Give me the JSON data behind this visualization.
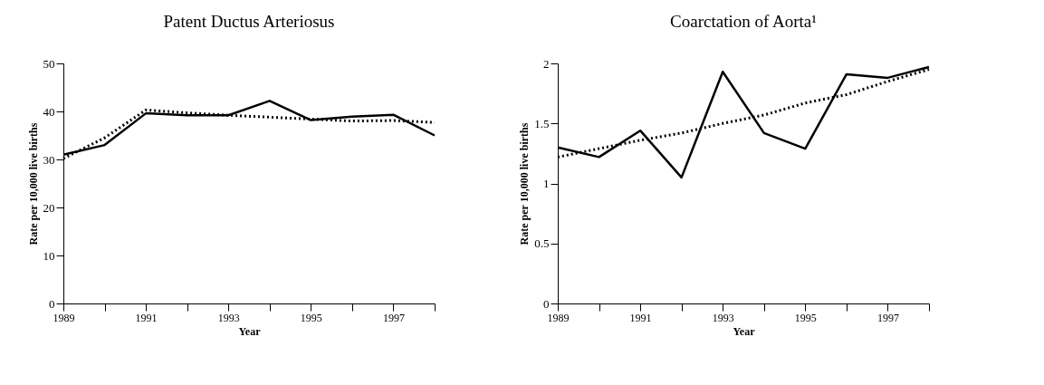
{
  "chart_data": [
    {
      "type": "line",
      "title": "Patent Ductus Arteriosus",
      "xlabel": "Year",
      "ylabel": "Rate per 10,000 live births",
      "x": [
        1989,
        1990,
        1991,
        1992,
        1993,
        1994,
        1995,
        1996,
        1997,
        1998
      ],
      "series": [
        {
          "color": "#000000",
          "line_style": "solid",
          "values": [
            31,
            33,
            39.6,
            39.2,
            39.2,
            42.2,
            38.2,
            38.9,
            39.3,
            35
          ]
        },
        {
          "color": "#000000",
          "line_style": "dotted",
          "values": [
            30.2,
            34.5,
            40.3,
            39.7,
            39.2,
            38.8,
            38.4,
            38.0,
            38.1,
            37.7
          ]
        }
      ],
      "xlim": [
        1989,
        1998
      ],
      "xticks": [
        1989,
        {
          "value": 1990,
          "label": null
        },
        1991,
        {
          "value": 1992,
          "label": null
        },
        1993,
        {
          "value": 1994,
          "label": null
        },
        1995,
        {
          "value": 1996,
          "label": null
        },
        1997,
        {
          "value": 1998,
          "label": null
        }
      ],
      "ylim": [
        0,
        50
      ],
      "yticks": [
        0,
        10,
        20,
        30,
        40,
        50
      ],
      "grid": false,
      "legend": false,
      "marker": "none"
    },
    {
      "type": "line",
      "title": "Coarctation of Aorta¹",
      "xlabel": "Year",
      "ylabel": "Rate per 10,000 live births",
      "x": [
        1989,
        1990,
        1991,
        1992,
        1993,
        1994,
        1995,
        1996,
        1997,
        1998
      ],
      "series": [
        {
          "color": "#000000",
          "line_style": "solid",
          "values": [
            1.3,
            1.22,
            1.44,
            1.05,
            1.93,
            1.42,
            1.29,
            1.91,
            1.88,
            1.97
          ]
        },
        {
          "color": "#000000",
          "line_style": "dotted",
          "values": [
            1.22,
            1.29,
            1.36,
            1.42,
            1.5,
            1.57,
            1.67,
            1.74,
            1.85,
            1.95
          ]
        }
      ],
      "xlim": [
        1989,
        1998
      ],
      "xticks": [
        1989,
        {
          "value": 1990,
          "label": null
        },
        1991,
        {
          "value": 1992,
          "label": null
        },
        1993,
        {
          "value": 1994,
          "label": null
        },
        1995,
        {
          "value": 1996,
          "label": null
        },
        1997,
        {
          "value": 1998,
          "label": null
        }
      ],
      "ylim": [
        0,
        2
      ],
      "yticks": [
        0,
        0.5,
        1,
        1.5,
        2
      ],
      "grid": false,
      "legend": false,
      "marker": "none"
    }
  ]
}
